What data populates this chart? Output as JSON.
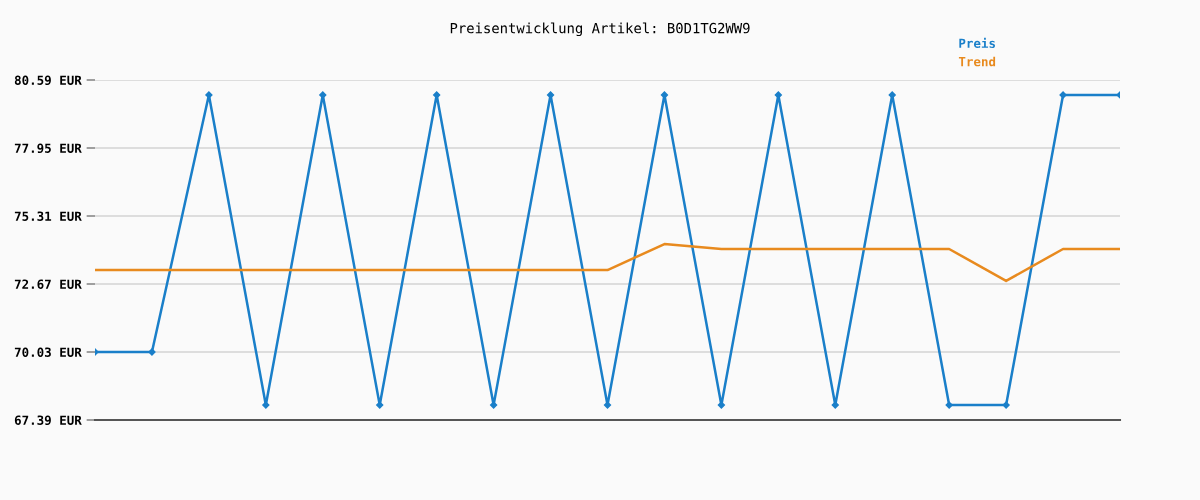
{
  "chart_data": {
    "type": "line",
    "title": "Preisentwicklung Artikel: B0D1TG2WW9",
    "categories": [
      null,
      null,
      null,
      null,
      null,
      null,
      null,
      null,
      null,
      null,
      null,
      null,
      null,
      null,
      null,
      null,
      null,
      null,
      null
    ],
    "series": [
      {
        "name": "Preis",
        "color": "#1a7fc9",
        "marker": "diamond",
        "values": [
          70.03,
          70.03,
          80.01,
          67.97,
          80.01,
          67.97,
          80.01,
          67.97,
          80.01,
          67.97,
          80.01,
          67.97,
          80.01,
          67.97,
          80.01,
          67.97,
          67.97,
          80.01,
          80.01
        ]
      },
      {
        "name": "Trend",
        "color": "#e88a1e",
        "marker": "none",
        "values": [
          73.21,
          73.21,
          73.21,
          73.21,
          73.21,
          73.21,
          73.21,
          73.21,
          73.21,
          73.21,
          74.22,
          74.03,
          74.03,
          74.03,
          74.03,
          74.03,
          72.79,
          74.03,
          74.03
        ]
      }
    ],
    "ylim": [
      67.39,
      80.59
    ],
    "yticks": [
      {
        "value": 67.39,
        "label": "67.39 EUR"
      },
      {
        "value": 70.03,
        "label": "70.03 EUR"
      },
      {
        "value": 72.67,
        "label": "72.67 EUR"
      },
      {
        "value": 75.31,
        "label": "75.31 EUR"
      },
      {
        "value": 77.95,
        "label": "77.95 EUR"
      },
      {
        "value": 80.59,
        "label": "80.59 EUR"
      }
    ],
    "grid": "y",
    "legend": "top right"
  }
}
